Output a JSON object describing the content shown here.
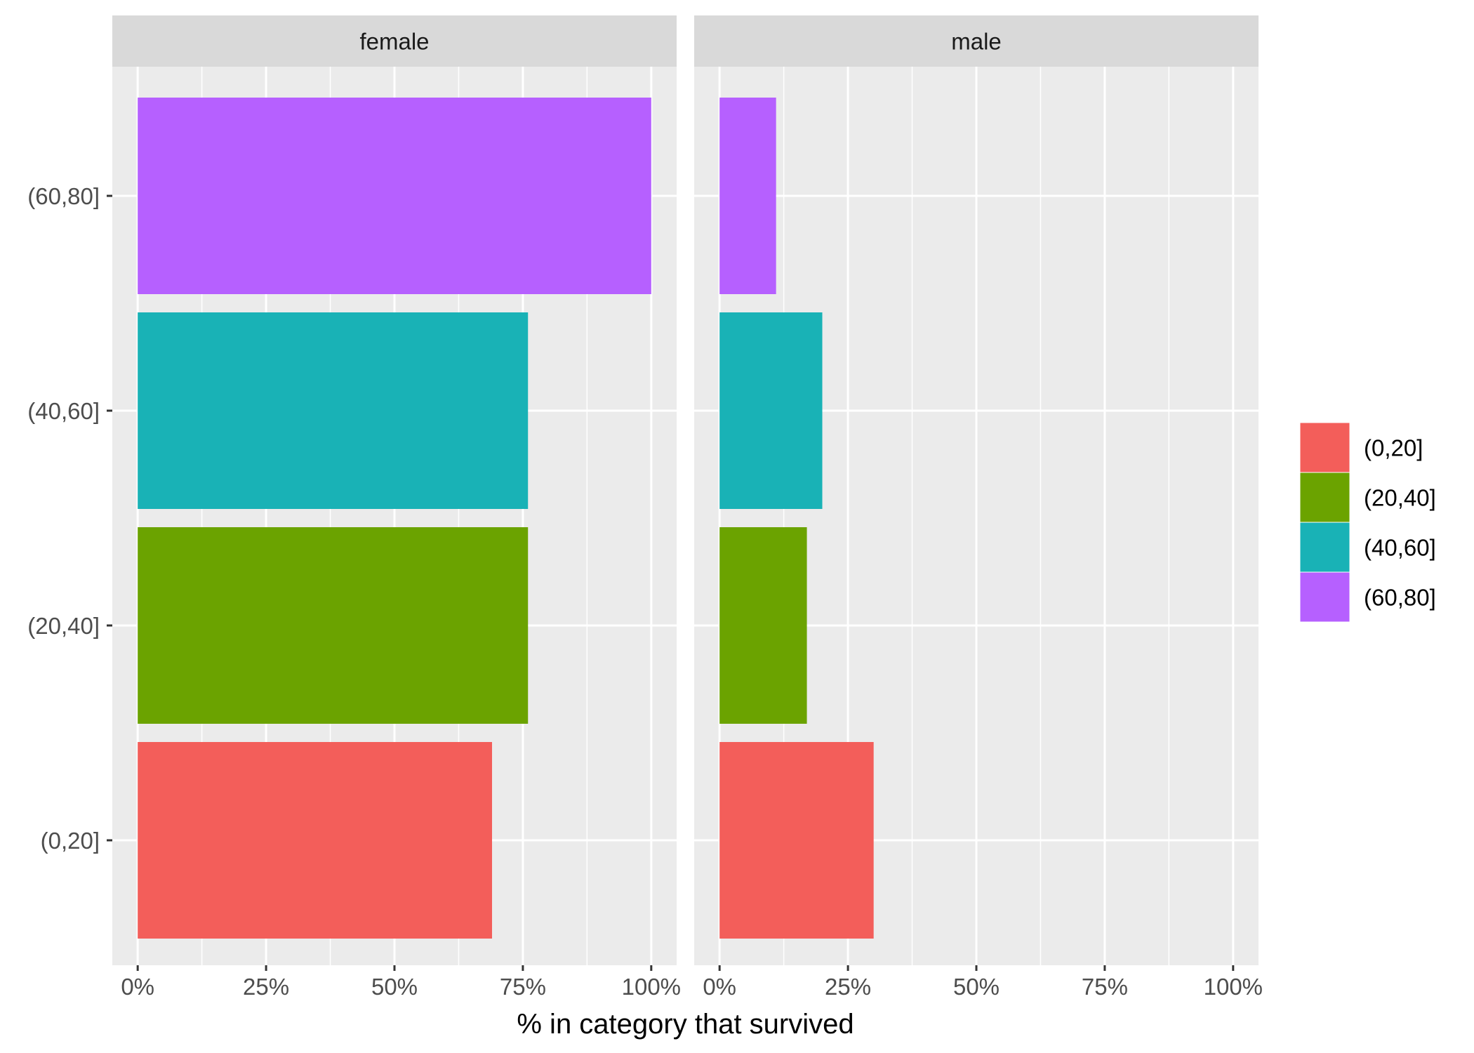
{
  "chart_data": {
    "type": "bar",
    "orientation": "horizontal",
    "xlabel": "% in category that survived",
    "ylabel": "",
    "xlim": [
      0,
      1
    ],
    "x_ticks": [
      {
        "value": 0,
        "label": "0%"
      },
      {
        "value": 0.25,
        "label": "25%"
      },
      {
        "value": 0.5,
        "label": "50%"
      },
      {
        "value": 0.75,
        "label": "75%"
      },
      {
        "value": 1,
        "label": "100%"
      }
    ],
    "categories": [
      "(0,20]",
      "(20,40]",
      "(40,60]",
      "(60,80]"
    ],
    "facets": [
      {
        "label": "female",
        "values": [
          0.69,
          0.76,
          0.76,
          1.0
        ]
      },
      {
        "label": "male",
        "values": [
          0.3,
          0.17,
          0.2,
          0.11
        ]
      }
    ],
    "colors": [
      "#F35E5A",
      "#6BA300",
      "#19B2B6",
      "#B660FF"
    ],
    "legend": {
      "placement": "right",
      "entries": [
        "(0,20]",
        "(20,40]",
        "(40,60]",
        "(60,80]"
      ]
    },
    "grid": true
  }
}
